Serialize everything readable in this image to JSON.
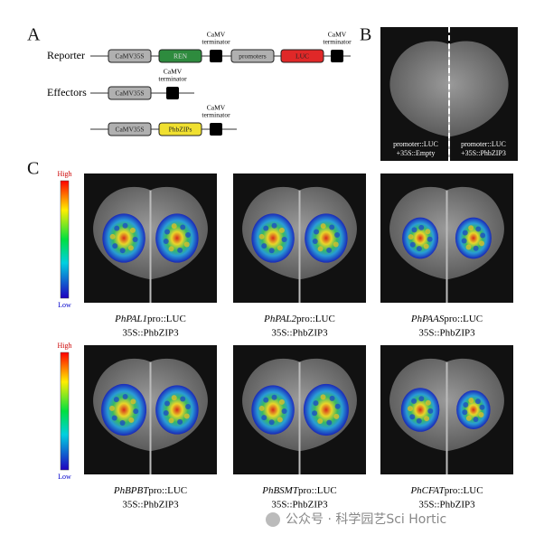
{
  "panel_a": {
    "label": "A",
    "rows": [
      {
        "label": "Reporter",
        "parts": [
          "CaMV35S",
          "REN",
          "promoters",
          "LUC"
        ]
      },
      {
        "label": "Effectors",
        "parts": [
          "CaMV35S"
        ]
      },
      {
        "parts": [
          "CaMV35S",
          "PhbZIPs"
        ]
      }
    ],
    "terminators": [
      [
        "CaMV",
        "terminator"
      ],
      [
        "CaMV",
        "terminator"
      ],
      [
        "CaMV",
        "terminator"
      ],
      [
        "CaMV",
        "terminator"
      ]
    ]
  },
  "panel_b": {
    "label": "B",
    "captions": [
      [
        "promoter::LUC",
        "+35S::Empty"
      ],
      [
        "promoter::LUC",
        "+35S::PhbZIP3"
      ]
    ]
  },
  "panel_c": {
    "label": "C",
    "scales": [
      {
        "high": "High",
        "low": "Low"
      },
      {
        "high": "High",
        "low": "Low"
      }
    ],
    "leaves": [
      {
        "gene": "PhPAL1",
        "suffix": "pro::LUC",
        "effector": "35S::PhbZIP3"
      },
      {
        "gene": "PhPAL2",
        "suffix": "pro::LUC",
        "effector": "35S::PhbZIP3"
      },
      {
        "gene": "PhPAAS",
        "suffix": "pro::LUC",
        "effector": "35S::PhbZIP3"
      },
      {
        "gene": "PhBPBT",
        "suffix": "pro::LUC",
        "effector": "35S::PhbZIP3"
      },
      {
        "gene": "PhBSMT",
        "suffix": "pro::LUC",
        "effector": "35S::PhbZIP3"
      },
      {
        "gene": "PhCFAT",
        "suffix": "pro::LUC",
        "effector": "35S::PhbZIP3"
      }
    ]
  },
  "watermark": "公众号 · 科学园艺Sci Hortic"
}
